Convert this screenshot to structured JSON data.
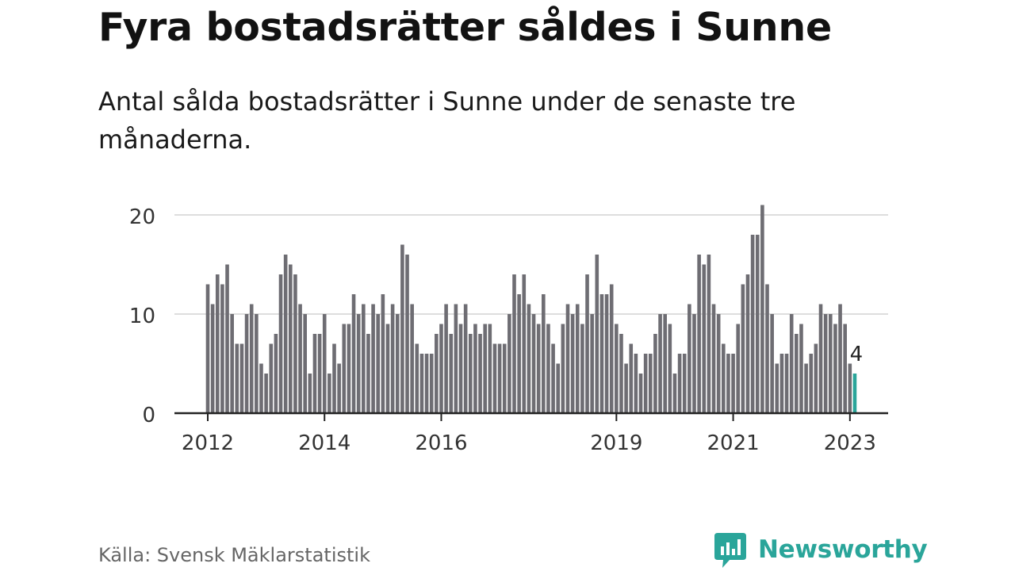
{
  "title": "Fyra bostadsrätter såldes i Sunne",
  "subtitle": "Antal sålda bostadsrätter i Sunne under de senaste tre månaderna.",
  "source": "Källa: Svensk Mäklarstatistik",
  "brand": "Newsworthy",
  "colors": {
    "bar": "#6e6d73",
    "highlight": "#2aa59a",
    "grid": "#dddddd",
    "axis": "#222222",
    "brand": "#2aa59a"
  },
  "chart_data": {
    "type": "bar",
    "start": "2012-01",
    "x_tick_labels": [
      "2012",
      "2014",
      "2016",
      "2019",
      "2021",
      "2023"
    ],
    "y_ticks": [
      0,
      10,
      20
    ],
    "ylim": [
      0,
      21
    ],
    "values": [
      13,
      11,
      14,
      13,
      15,
      10,
      7,
      7,
      10,
      11,
      10,
      5,
      4,
      7,
      8,
      14,
      16,
      15,
      14,
      11,
      10,
      4,
      8,
      8,
      10,
      4,
      7,
      5,
      9,
      9,
      12,
      10,
      11,
      8,
      11,
      10,
      12,
      9,
      11,
      10,
      17,
      16,
      11,
      7,
      6,
      6,
      6,
      8,
      9,
      11,
      8,
      11,
      9,
      11,
      8,
      9,
      8,
      9,
      9,
      7,
      7,
      7,
      10,
      14,
      12,
      14,
      11,
      10,
      9,
      12,
      9,
      7,
      5,
      9,
      11,
      10,
      11,
      9,
      14,
      10,
      16,
      12,
      12,
      13,
      9,
      8,
      5,
      7,
      6,
      4,
      6,
      6,
      8,
      10,
      10,
      9,
      4,
      6,
      6,
      11,
      10,
      16,
      15,
      16,
      11,
      10,
      7,
      6,
      6,
      9,
      13,
      14,
      18,
      18,
      21,
      13,
      10,
      5,
      6,
      6,
      10,
      8,
      9,
      5,
      6,
      7,
      11,
      10,
      10,
      9,
      11,
      9,
      5,
      4
    ],
    "highlight_last": true,
    "last_label": "4"
  }
}
